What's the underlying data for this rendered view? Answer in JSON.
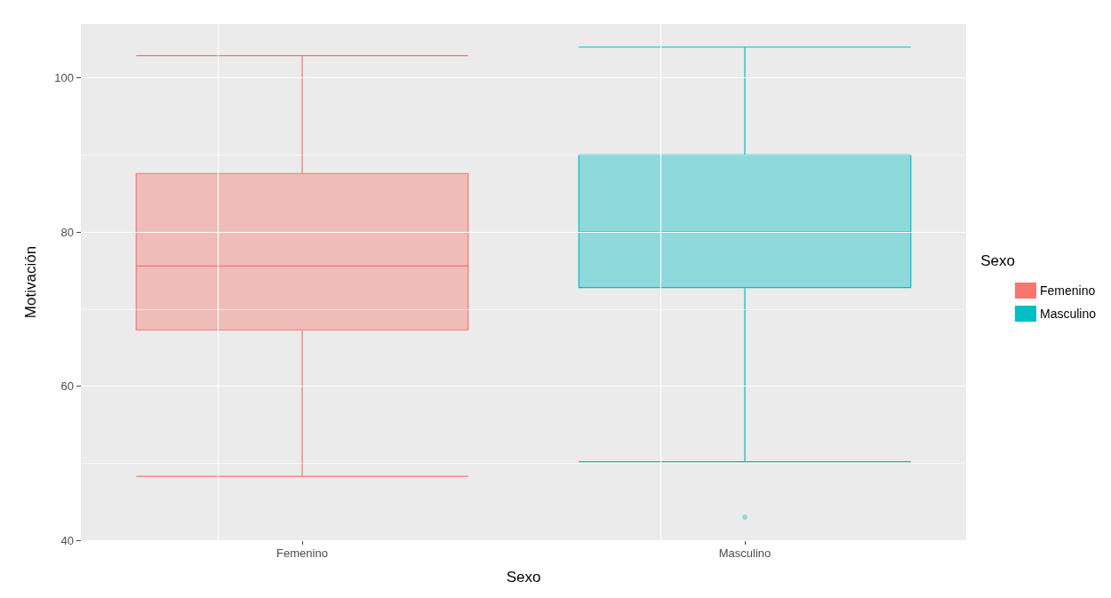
{
  "chart_data": {
    "type": "box",
    "xlabel": "Sexo",
    "ylabel": "Motivación",
    "legend_title": "Sexo",
    "legend": "right",
    "grid": true,
    "categories": [
      "Femenino",
      "Masculino"
    ],
    "series": [
      {
        "name": "Femenino",
        "color": "#f8766d",
        "boxes": [
          {
            "low": 48.3,
            "q1": 67.3,
            "median": 75.6,
            "q3": 87.6,
            "high": 102.9
          },
          null
        ]
      },
      {
        "name": "Masculino",
        "color": "#00bfc4",
        "boxes": [
          null,
          {
            "low": 50.2,
            "q1": 72.8,
            "median": 80,
            "q3": 90,
            "high": 104,
            "outliers": [
              43
            ]
          }
        ]
      }
    ],
    "ylim": [
      40,
      107
    ],
    "yticks": [
      40,
      {
        "value": 50,
        "label": null
      },
      60,
      {
        "value": 70,
        "label": null
      },
      80,
      {
        "value": 90,
        "label": null
      },
      100
    ]
  }
}
